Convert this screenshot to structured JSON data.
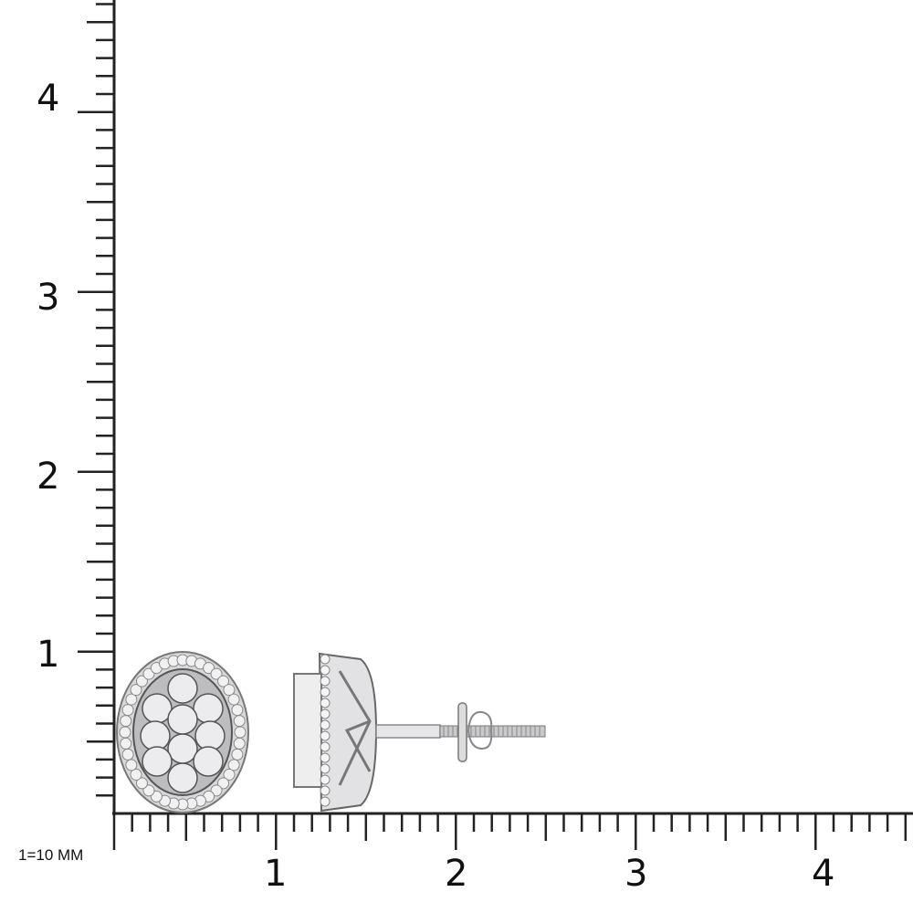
{
  "scale_note": "1=10 MM",
  "x_axis": {
    "labels": [
      "1",
      "2",
      "3",
      "4"
    ],
    "minor_divisions_per_unit": 10
  },
  "y_axis": {
    "labels": [
      "1",
      "2",
      "3",
      "4"
    ],
    "minor_divisions_per_unit": 10
  },
  "product": {
    "views": [
      "front-view-oval-cluster-earring",
      "side-view-screw-back-earring"
    ],
    "metal_color": "#c9c9cb"
  }
}
